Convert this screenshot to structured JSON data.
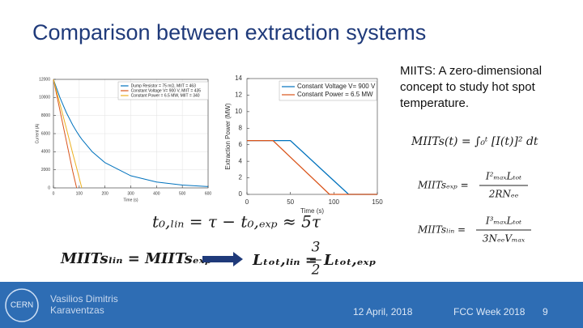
{
  "header": {
    "title": "Comparison between extraction systems"
  },
  "chart_data": [
    {
      "type": "line",
      "ylabel": "Current (A)",
      "xlabel": "Time (s)",
      "x": [
        0,
        25,
        50,
        75,
        90,
        100,
        110,
        150,
        200,
        300,
        400,
        500,
        600
      ],
      "series": [
        {
          "name": "Dump Resistor = 75 mΩ, MIIT = 463",
          "color": "#0072bd",
          "values": [
            12000,
            10000,
            8330,
            6940,
            6220,
            5780,
            5380,
            4010,
            2790,
            1340,
            650,
            310,
            150
          ]
        },
        {
          "name": "Constant Voltage V= 900 V, MIIT = 435",
          "color": "#d95319",
          "values": [
            12000,
            8600,
            5200,
            1800,
            0,
            null,
            null,
            null,
            null,
            null,
            null,
            null,
            null
          ]
        },
        {
          "name": "Constant Power = 6.5 MW, MIIT = 340",
          "color": "#edb120",
          "values": [
            12000,
            9300,
            6600,
            3800,
            2200,
            1100,
            0,
            null,
            null,
            null,
            null,
            null,
            null
          ]
        }
      ],
      "xlim": [
        0,
        600
      ],
      "xticks": [
        0,
        100,
        200,
        300,
        400,
        500,
        600
      ],
      "ylim": [
        0,
        12000
      ],
      "yticks": [
        0,
        2000,
        4000,
        6000,
        8000,
        10000,
        12000
      ],
      "grid": true
    },
    {
      "type": "line",
      "ylabel": "Extraction Power (MW)",
      "xlabel": "Time (s)",
      "x": [
        0,
        30,
        50,
        95,
        117,
        150
      ],
      "series": [
        {
          "name": "Constant Voltage V= 900 V",
          "color": "#0072bd",
          "values": [
            6.5,
            6.5,
            6.5,
            2.13,
            0,
            0
          ]
        },
        {
          "name": "Constant Power = 6.5 MW",
          "color": "#d95319",
          "values": [
            6.5,
            6.5,
            4.5,
            0,
            0,
            0
          ]
        }
      ],
      "xlim": [
        0,
        150
      ],
      "xticks": [
        0,
        50,
        100,
        150
      ],
      "ylim": [
        0,
        14
      ],
      "yticks": [
        0,
        2,
        4,
        6,
        8,
        10,
        12,
        14
      ],
      "grid": false
    }
  ],
  "description": "MIITS: A zero-dimensional concept to study hot spot temperature.",
  "equations": {
    "miits": "MIITs(t) = ∫₀ᵗ [I(t)]² dt",
    "miits_exp": {
      "lhs": "MIITsₑₓₚ =",
      "numerator": "I²ₘₐₓLₜₒₜ",
      "denominator": "2RNₑₑ"
    },
    "miits_lin": {
      "lhs": "MIITsₗᵢₙ =",
      "numerator": "I³ₘₐₓLₜₒₜ",
      "denominator": "3NₑₑVₘₐₓ"
    },
    "time": "t₀,ₗᵢₙ = τ −  t₀,ₑₓₚ ≈ 5τ",
    "equality": "MIITsₗᵢₙ = MIITsₑₓₚ",
    "inductance": {
      "lhs": "Lₜₒₜ,ₗᵢₙ =",
      "numerator": "3",
      "denominator": "2",
      "rhs": "Lₜₒₜ,ₑₓₚ"
    }
  },
  "footer": {
    "logo": "CERN",
    "author": "Vasilios Dimitris Karaventzas",
    "date": "12 April, 2018",
    "event": "FCC Week 2018",
    "page": "9"
  }
}
